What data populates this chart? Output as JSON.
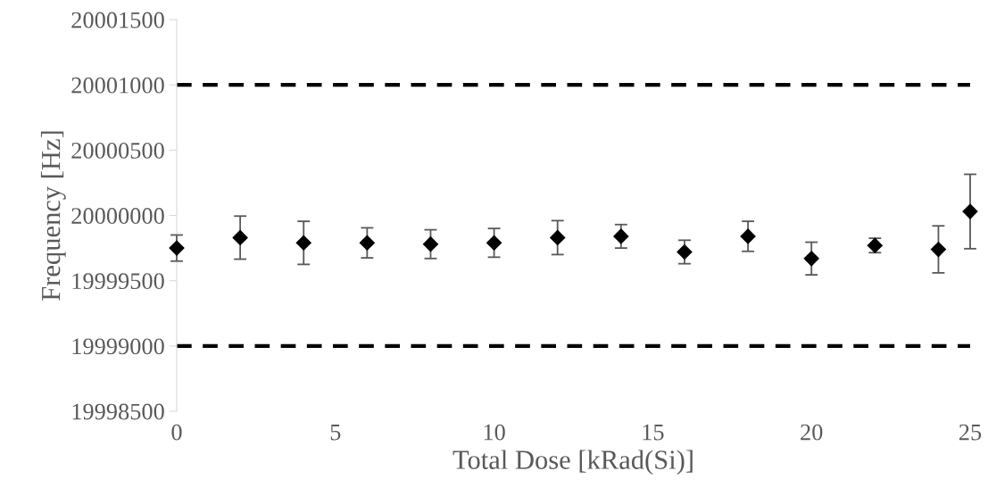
{
  "chart_data": {
    "type": "scatter",
    "xlabel": "Total Dose [kRad(Si)]",
    "ylabel": "Frequency [Hz]",
    "x": [
      0,
      2,
      4,
      6,
      8,
      10,
      12,
      14,
      16,
      18,
      20,
      22,
      24,
      25
    ],
    "values": [
      19999750,
      19999830,
      19999790,
      19999790,
      19999780,
      19999790,
      19999830,
      19999840,
      19999720,
      19999840,
      19999670,
      19999770,
      19999740,
      20000030
    ],
    "errors": [
      100,
      165,
      165,
      115,
      110,
      110,
      130,
      90,
      90,
      115,
      125,
      55,
      180,
      285
    ],
    "color": "#000000",
    "marker": "diamond",
    "grid": false,
    "legend": false,
    "xlim": [
      0,
      25
    ],
    "xticks": [
      0,
      5,
      10,
      15,
      20,
      25
    ],
    "ylim": [
      19998500,
      20001500
    ],
    "yticks": [
      19998500,
      19999000,
      19999500,
      20000000,
      20000500,
      20001000,
      20001500
    ],
    "ref_lines": [
      {
        "axis": "y",
        "value": 20001000,
        "color": "#000000",
        "line_style": "dashed"
      },
      {
        "axis": "y",
        "value": 19999000,
        "color": "#000000",
        "line_style": "dashed"
      }
    ]
  }
}
